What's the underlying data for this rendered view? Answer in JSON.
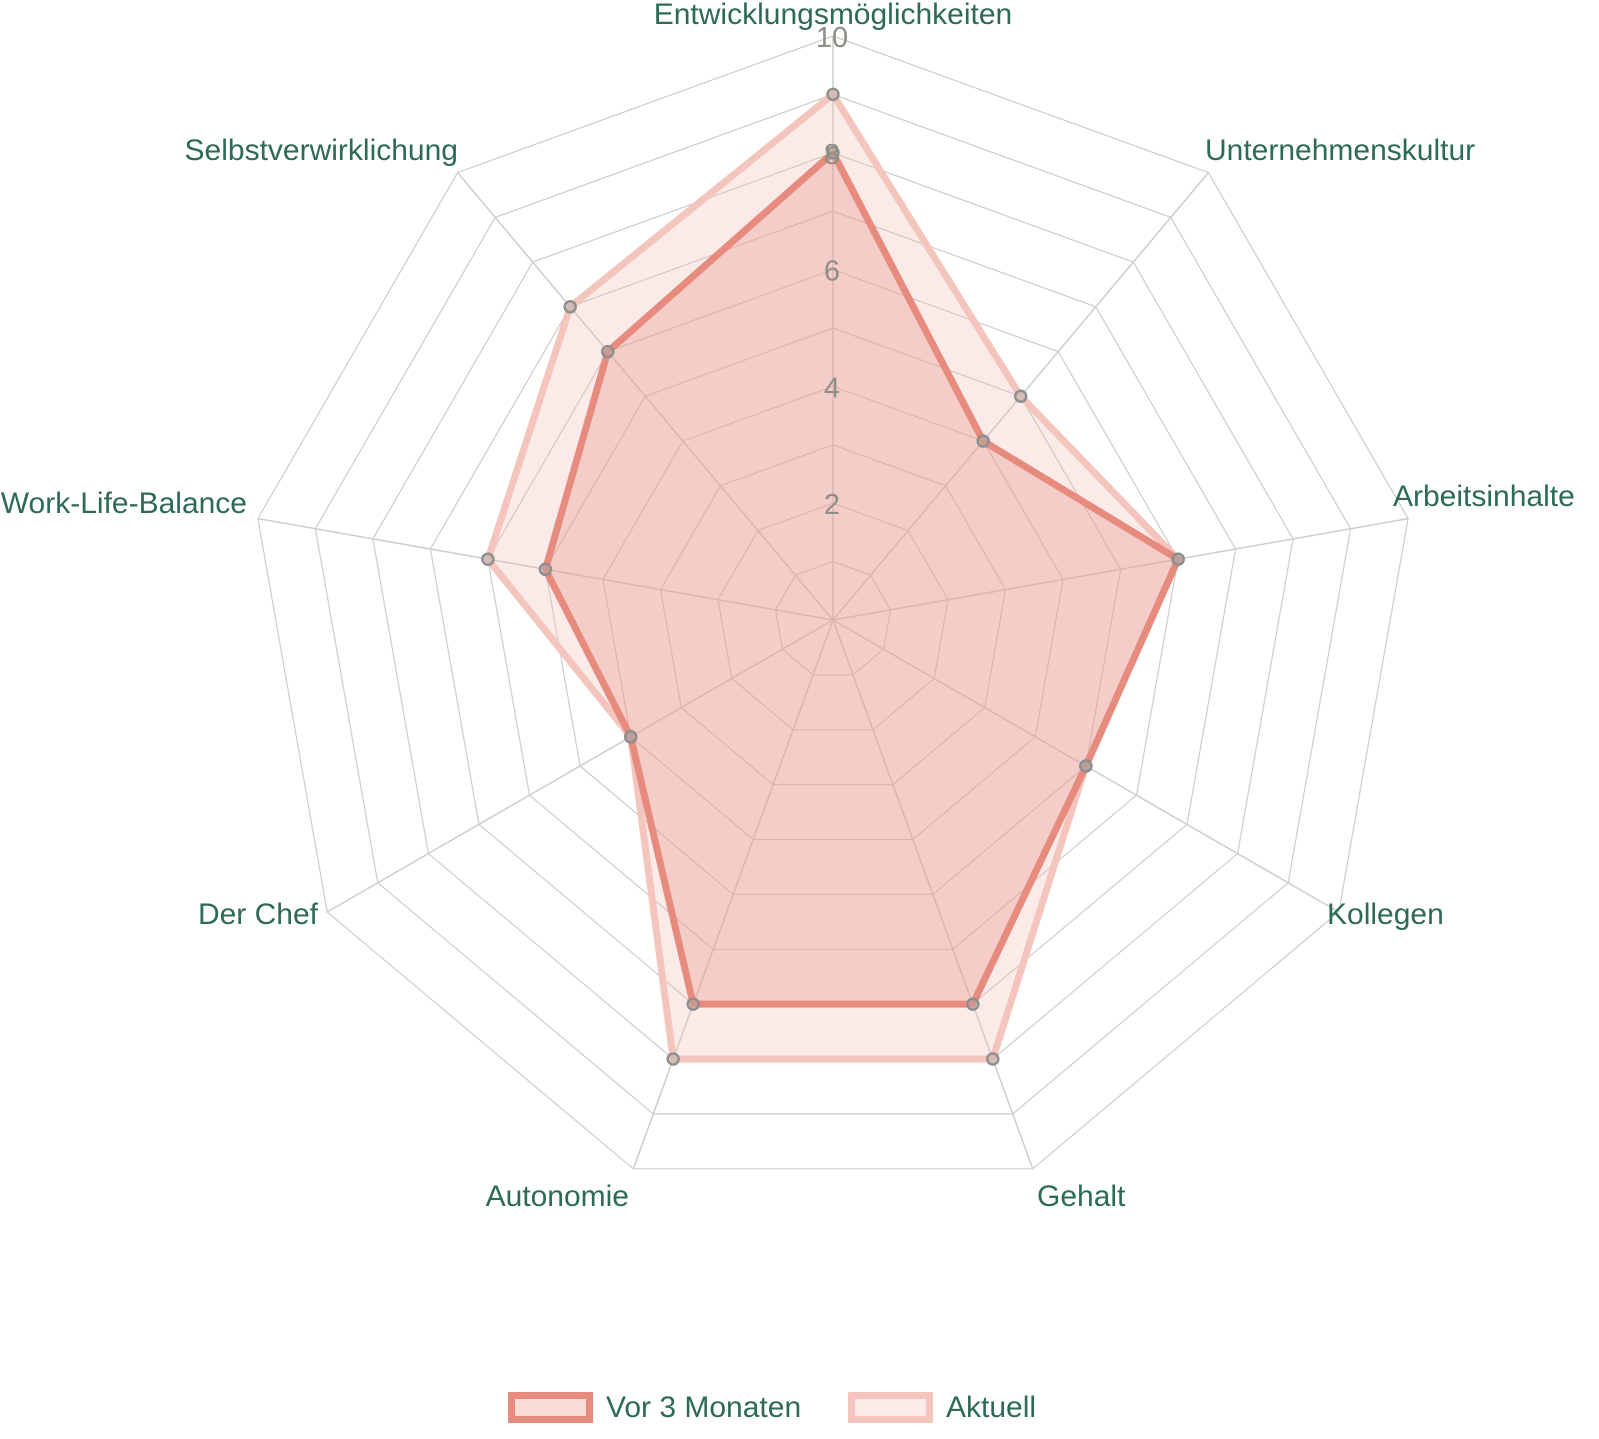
{
  "chart_data": {
    "type": "radar",
    "categories": [
      "Entwicklungsmöglichkeiten",
      "Unternehmenskultur",
      "Arbeitsinhalte",
      "Kollegen",
      "Gehalt",
      "Autonomie",
      "Der Chef",
      "Work-Life-Balance",
      "Selbstverwirklichung"
    ],
    "series": [
      {
        "name": "Vor 3 Monaten",
        "values": [
          8,
          4,
          6,
          5,
          7,
          7,
          4,
          5,
          6
        ],
        "stroke_color": "#e78b7f",
        "fill_color": "rgba(231,139,127,0.30)"
      },
      {
        "name": "Aktuell",
        "values": [
          9,
          5,
          6,
          5,
          8,
          8,
          4,
          6,
          7
        ],
        "stroke_color": "#f3c5bd",
        "fill_color": "rgba(240,186,178,0.30)"
      }
    ],
    "scale": {
      "min": 0,
      "max": 10,
      "ring_step": 1,
      "tick_labels": [
        "2",
        "4",
        "6",
        "8",
        "10"
      ]
    },
    "style": {
      "axis_label_color": "#2d6b54",
      "tick_label_color": "#8b9086",
      "grid_color": "#cdcdcd",
      "marker_stroke": "#8f8f8f",
      "marker_fill": "rgba(170,170,170,0.40)"
    },
    "legend_position": "bottom"
  }
}
